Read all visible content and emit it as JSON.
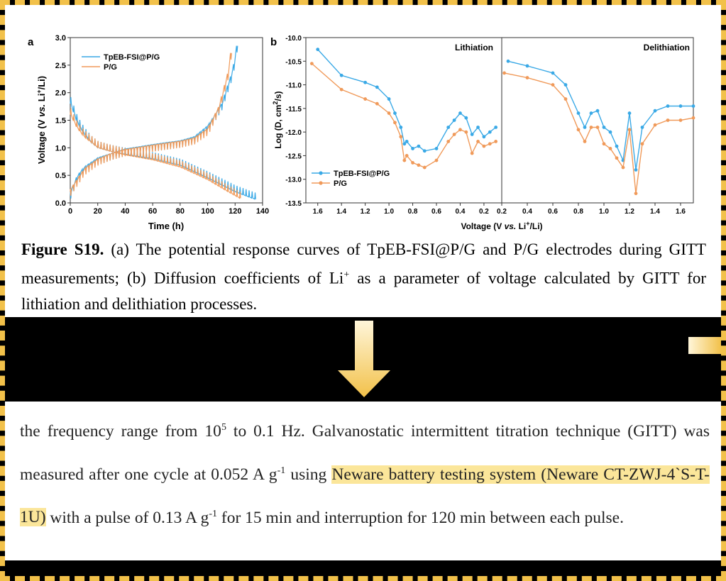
{
  "caption": {
    "label": "Figure S19.",
    "text": " (a) The potential response curves of TpEB-FSI@P/G and P/G electrodes during GITT measurements; (b) Diffusion coefficients of Li",
    "sup": "+",
    "text2": " as a parameter of voltage calculated by GITT for lithiation and delithiation processes."
  },
  "body": {
    "t1": "the frequency range from 10",
    "t1_sup": "5",
    "t2": " to 0.1 Hz. Galvanostatic intermittent titration technique (GITT) was measured after one cycle at 0.052 A g",
    "t2_sup": "-1",
    "t3": " using ",
    "highlight": "Neware battery testing system (Neware CT-ZWJ-4`S-T-1U)",
    "t4": " with a pulse of 0.13 A g",
    "t4_sup": "-1",
    "t5": " for 15 min and interruption for 120 min between each pulse."
  },
  "colors": {
    "tpeb": "#3aa9e6",
    "pg": "#f09a5a",
    "highlight": "#fbe69a",
    "frame": "#f2c14a"
  },
  "chart_data": [
    {
      "panel": "a",
      "type": "line",
      "xlabel": "Time (h)",
      "ylabel": "Voltage (V vs. Li+/Li)",
      "xlim": [
        0,
        140
      ],
      "ylim": [
        0,
        3.0
      ],
      "xticks": [
        "0",
        "20",
        "40",
        "60",
        "80",
        "100",
        "120",
        "140"
      ],
      "yticks": [
        "0.0",
        "0.5",
        "1.0",
        "1.5",
        "2.0",
        "2.5",
        "3.0"
      ],
      "legend": "top-left",
      "series": [
        {
          "name": "TpEB-FSI@P/G",
          "discharge": [
            [
              0,
              1.8
            ],
            [
              5,
              1.45
            ],
            [
              10,
              1.25
            ],
            [
              15,
              1.1
            ],
            [
              20,
              1.0
            ],
            [
              30,
              0.93
            ],
            [
              40,
              0.88
            ],
            [
              60,
              0.8
            ],
            [
              80,
              0.68
            ],
            [
              100,
              0.45
            ],
            [
              120,
              0.2
            ],
            [
              135,
              0.06
            ]
          ],
          "charge": [
            [
              0,
              0.2
            ],
            [
              5,
              0.5
            ],
            [
              10,
              0.65
            ],
            [
              20,
              0.82
            ],
            [
              30,
              0.9
            ],
            [
              40,
              0.98
            ],
            [
              60,
              1.06
            ],
            [
              80,
              1.13
            ],
            [
              90,
              1.2
            ],
            [
              100,
              1.4
            ],
            [
              110,
              1.8
            ],
            [
              118,
              2.4
            ],
            [
              122,
              3.0
            ]
          ]
        },
        {
          "name": "P/G",
          "discharge": [
            [
              0,
              1.6
            ],
            [
              5,
              1.35
            ],
            [
              10,
              1.2
            ],
            [
              20,
              1.0
            ],
            [
              30,
              0.93
            ],
            [
              40,
              0.87
            ],
            [
              60,
              0.78
            ],
            [
              80,
              0.65
            ],
            [
              100,
              0.42
            ],
            [
              115,
              0.2
            ],
            [
              125,
              0.06
            ]
          ],
          "charge": [
            [
              0,
              0.25
            ],
            [
              10,
              0.62
            ],
            [
              20,
              0.8
            ],
            [
              30,
              0.9
            ],
            [
              40,
              0.97
            ],
            [
              60,
              1.05
            ],
            [
              80,
              1.12
            ],
            [
              90,
              1.18
            ],
            [
              100,
              1.35
            ],
            [
              108,
              1.75
            ],
            [
              115,
              2.4
            ],
            [
              118,
              3.0
            ]
          ]
        }
      ]
    },
    {
      "panel": "b",
      "type": "line",
      "ylabel": "Log (D, cm2/s)",
      "xlabel": "Voltage (V vs. Li+/Li)",
      "ylim": [
        -13.5,
        -10.0
      ],
      "yticks": [
        "-10.0",
        "-10.5",
        "-11.0",
        "-11.5",
        "-12.0",
        "-12.5",
        "-13.0",
        "-13.5"
      ],
      "legend": "bottom-left",
      "subplots": [
        {
          "title": "Lithiation",
          "xlim": [
            1.7,
            0.05
          ],
          "xticks": [
            "1.6",
            "1.4",
            "1.2",
            "1.0",
            "0.8",
            "0.6",
            "0.4",
            "0.2"
          ],
          "series": [
            {
              "name": "TpEB-FSI@P/G",
              "x": [
                1.6,
                1.4,
                1.2,
                1.1,
                1.0,
                0.95,
                0.9,
                0.87,
                0.85,
                0.8,
                0.75,
                0.7,
                0.6,
                0.5,
                0.45,
                0.4,
                0.35,
                0.3,
                0.25,
                0.2,
                0.15,
                0.1
              ],
              "y": [
                -10.25,
                -10.8,
                -10.95,
                -11.05,
                -11.3,
                -11.6,
                -11.9,
                -12.25,
                -12.2,
                -12.35,
                -12.3,
                -12.4,
                -12.35,
                -11.9,
                -11.75,
                -11.6,
                -11.7,
                -12.05,
                -11.9,
                -12.1,
                -12.0,
                -11.9
              ]
            },
            {
              "name": "P/G",
              "x": [
                1.65,
                1.4,
                1.2,
                1.1,
                1.0,
                0.95,
                0.9,
                0.87,
                0.85,
                0.8,
                0.75,
                0.7,
                0.6,
                0.5,
                0.45,
                0.4,
                0.35,
                0.3,
                0.25,
                0.2,
                0.15,
                0.1
              ],
              "y": [
                -10.55,
                -11.1,
                -11.3,
                -11.4,
                -11.6,
                -11.8,
                -12.1,
                -12.6,
                -12.5,
                -12.65,
                -12.7,
                -12.75,
                -12.6,
                -12.2,
                -12.05,
                -11.95,
                -12.0,
                -12.45,
                -12.2,
                -12.3,
                -12.25,
                -12.2
              ]
            }
          ]
        },
        {
          "title": "Delithiation",
          "xlim": [
            0.2,
            1.7
          ],
          "xticks": [
            "0.2",
            "0.4",
            "0.6",
            "0.8",
            "1.0",
            "1.2",
            "1.4",
            "1.6"
          ],
          "series": [
            {
              "name": "TpEB-FSI@P/G",
              "x": [
                0.25,
                0.4,
                0.6,
                0.7,
                0.8,
                0.85,
                0.9,
                0.95,
                1.0,
                1.05,
                1.1,
                1.15,
                1.2,
                1.25,
                1.3,
                1.4,
                1.5,
                1.6,
                1.7
              ],
              "y": [
                -10.5,
                -10.6,
                -10.75,
                -11.0,
                -11.6,
                -11.9,
                -11.6,
                -11.55,
                -11.9,
                -12.0,
                -12.3,
                -12.6,
                -11.6,
                -12.8,
                -11.9,
                -11.55,
                -11.45,
                -11.45,
                -11.45
              ]
            },
            {
              "name": "P/G",
              "x": [
                0.22,
                0.4,
                0.6,
                0.7,
                0.8,
                0.85,
                0.9,
                0.95,
                1.0,
                1.05,
                1.1,
                1.15,
                1.2,
                1.25,
                1.3,
                1.4,
                1.5,
                1.6,
                1.7
              ],
              "y": [
                -10.75,
                -10.85,
                -11.0,
                -11.3,
                -11.95,
                -12.2,
                -11.9,
                -11.9,
                -12.25,
                -12.35,
                -12.55,
                -12.75,
                -11.95,
                -13.3,
                -12.25,
                -11.85,
                -11.75,
                -11.75,
                -11.7
              ]
            }
          ]
        }
      ]
    }
  ],
  "labels": {
    "a": "a",
    "b": "b",
    "a_xlabel": "Time (h)",
    "a_ylabel_1": "Voltage (V ",
    "a_ylabel_vs": "vs.",
    "a_ylabel_2": " Li",
    "a_ylabel_sup": "+",
    "a_ylabel_3": "/Li)",
    "b_ylabel_1": "Log (D, cm",
    "b_ylabel_sup": "2",
    "b_ylabel_2": "/s)",
    "b_xlabel_1": "Voltage (V ",
    "b_xlabel_vs": "vs.",
    "b_xlabel_2": " Li",
    "b_xlabel_sup": "+",
    "b_xlabel_3": "/Li)",
    "lith": "Lithiation",
    "delith": "Delithiation",
    "leg1": "TpEB-FSI@P/G",
    "leg2": "P/G"
  }
}
